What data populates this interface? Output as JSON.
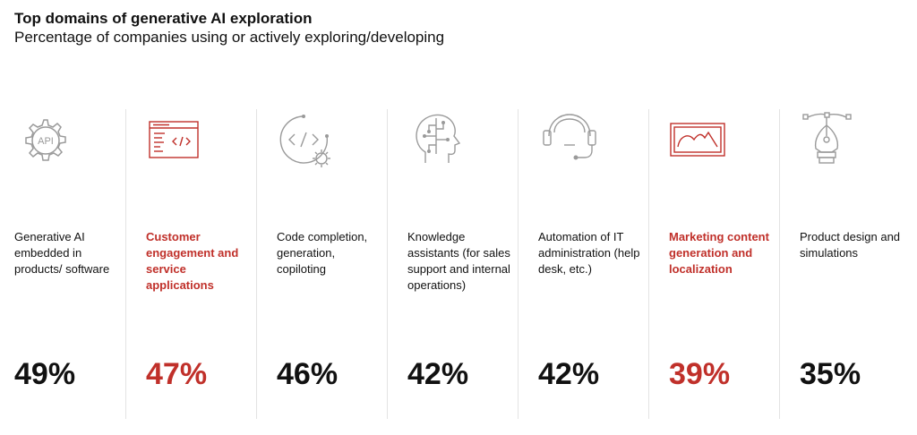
{
  "header": {
    "title": "Top domains of generative AI exploration",
    "subtitle": "Percentage of companies using or actively exploring/developing"
  },
  "colors": {
    "accent": "#c0302a",
    "text": "#111111",
    "icon_gray": "#9a9a9a",
    "divider": "#e3e3e3"
  },
  "chart_data": {
    "type": "bar",
    "title": "Top domains of generative AI exploration",
    "subtitle": "Percentage of companies using or actively exploring/developing",
    "categories": [
      "Generative AI embedded in products/ software",
      "Customer engagement and service applications",
      "Code completion, generation, copiloting",
      "Knowledge assistants (for sales support and internal operations)",
      "Automation of IT administration (help desk, etc.)",
      "Marketing content generation and localization",
      "Product design and simulations"
    ],
    "values": [
      49,
      47,
      46,
      42,
      42,
      39,
      35
    ],
    "value_labels": [
      "49%",
      "47%",
      "46%",
      "42%",
      "42%",
      "39%",
      "35%"
    ],
    "highlighted": [
      false,
      true,
      false,
      false,
      false,
      true,
      false
    ],
    "unit": "%"
  },
  "items": [
    {
      "label": "Generative AI embedded in products/ software",
      "value": "49%",
      "icon": "api-gear-icon",
      "highlight": false
    },
    {
      "label": "Customer engagement and service applications",
      "value": "47%",
      "icon": "code-window-icon",
      "highlight": true
    },
    {
      "label": "Code completion, generation, copiloting",
      "value": "46%",
      "icon": "code-gear-icon",
      "highlight": false
    },
    {
      "label": "Knowledge assistants (for sales support and internal operations)",
      "value": "42%",
      "icon": "ai-head-icon",
      "highlight": false
    },
    {
      "label": "Automation of IT administration (help desk, etc.)",
      "value": "42%",
      "icon": "headset-icon",
      "highlight": false
    },
    {
      "label": "Marketing content generation and localization",
      "value": "39%",
      "icon": "image-frame-icon",
      "highlight": true
    },
    {
      "label": "Product design and simulations",
      "value": "35%",
      "icon": "pen-nib-icon",
      "highlight": false
    }
  ],
  "icon_text": {
    "api": "API"
  }
}
